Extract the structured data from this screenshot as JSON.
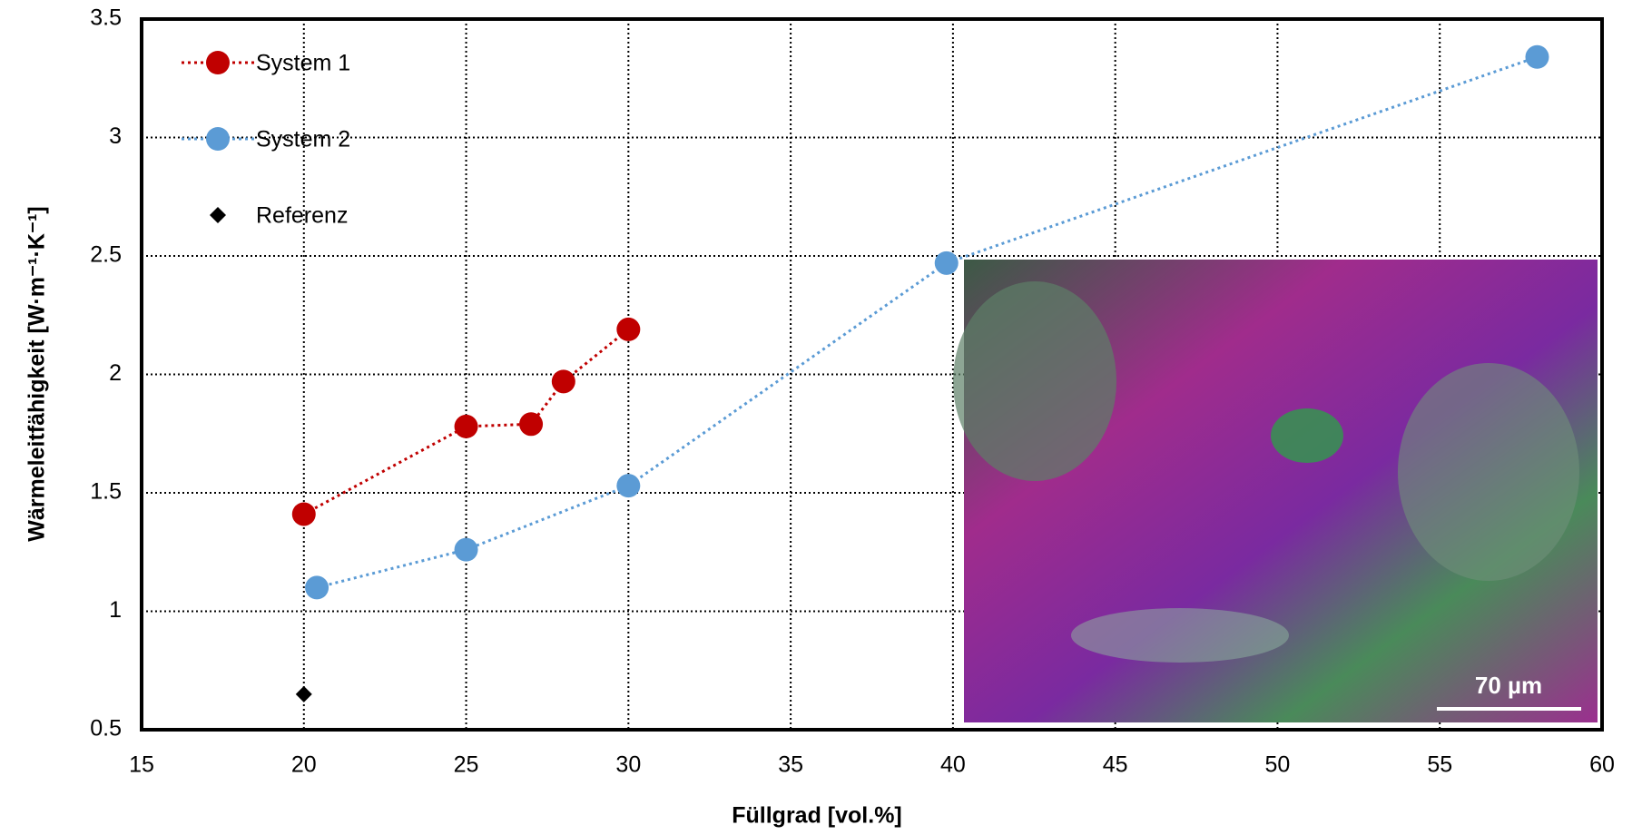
{
  "chart_data": {
    "type": "line",
    "xlabel": "Füllgrad   [vol.%]",
    "ylabel": "Wärmeleitfähigkeit   [W·m⁻¹·K⁻¹]",
    "xlim": [
      15,
      60
    ],
    "xticks": [
      15,
      20,
      25,
      30,
      35,
      40,
      45,
      50,
      55,
      60
    ],
    "ylim": [
      0.5,
      3.5
    ],
    "yticks": [
      0.5,
      1,
      1.5,
      2,
      2.5,
      3,
      3.5
    ],
    "grid": true,
    "legend": "upper left",
    "series": [
      {
        "name": "System  1",
        "color": "#c00000",
        "marker": "circle",
        "line": true,
        "x": [
          20,
          25,
          27,
          28,
          30
        ],
        "values": [
          1.41,
          1.78,
          1.79,
          1.97,
          2.19
        ]
      },
      {
        "name": "System  2",
        "color": "#5b9bd5",
        "marker": "circle",
        "line": true,
        "x": [
          20.4,
          25,
          30,
          39.8,
          58
        ],
        "values": [
          1.1,
          1.26,
          1.53,
          2.47,
          3.34
        ]
      },
      {
        "name": "Referenz",
        "color": "#000000",
        "marker": "diamond",
        "line": false,
        "x": [
          20
        ],
        "values": [
          0.65
        ]
      }
    ],
    "inset_scale_label": "70 µm"
  }
}
